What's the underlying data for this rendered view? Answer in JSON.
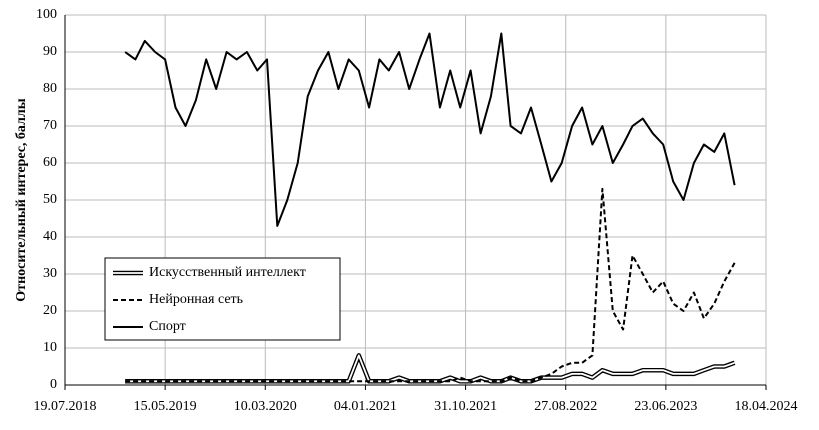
{
  "chart_data": {
    "type": "line",
    "ylabel": "Относительный интерес, баллы",
    "xlim": [
      "2018-07-19",
      "2024-04-18"
    ],
    "xticks": [
      {
        "value": "2018-07-19",
        "label": "19.07.2018"
      },
      {
        "value": "2019-05-15",
        "label": "15.05.2019"
      },
      {
        "value": "2020-03-10",
        "label": "10.03.2020"
      },
      {
        "value": "2021-01-04",
        "label": "04.01.2021"
      },
      {
        "value": "2021-10-31",
        "label": "31.10.2021"
      },
      {
        "value": "2022-08-27",
        "label": "27.08.2022"
      },
      {
        "value": "2023-06-23",
        "label": "23.06.2023"
      },
      {
        "value": "2024-04-18",
        "label": "18.04.2024"
      }
    ],
    "ylim": [
      0,
      100
    ],
    "yticks": [
      0,
      10,
      20,
      30,
      40,
      50,
      60,
      70,
      80,
      90,
      100
    ],
    "grid": true,
    "legend": "lower left",
    "x": [
      "2019-01-15",
      "2019-02-15",
      "2019-03-15",
      "2019-04-15",
      "2019-05-15",
      "2019-06-15",
      "2019-07-15",
      "2019-08-15",
      "2019-09-15",
      "2019-10-15",
      "2019-11-15",
      "2019-12-15",
      "2020-01-15",
      "2020-02-15",
      "2020-03-15",
      "2020-04-15",
      "2020-05-15",
      "2020-06-15",
      "2020-07-15",
      "2020-08-15",
      "2020-09-15",
      "2020-10-15",
      "2020-11-15",
      "2020-12-15",
      "2021-01-15",
      "2021-02-15",
      "2021-03-15",
      "2021-04-15",
      "2021-05-15",
      "2021-06-15",
      "2021-07-15",
      "2021-08-15",
      "2021-09-15",
      "2021-10-15",
      "2021-11-15",
      "2021-12-15",
      "2022-01-15",
      "2022-02-15",
      "2022-03-15",
      "2022-04-15",
      "2022-05-15",
      "2022-06-15",
      "2022-07-15",
      "2022-08-15",
      "2022-09-15",
      "2022-10-15",
      "2022-11-15",
      "2022-12-15",
      "2023-01-15",
      "2023-02-15",
      "2023-03-15",
      "2023-04-15",
      "2023-05-15",
      "2023-06-15",
      "2023-07-15",
      "2023-08-15",
      "2023-09-15",
      "2023-10-15",
      "2023-11-15",
      "2023-12-15",
      "2024-01-15"
    ],
    "series": [
      {
        "name": "Искусственный интеллект",
        "color": "#000000",
        "linestyle": "double",
        "values": [
          1,
          1,
          1,
          1,
          1,
          1,
          1,
          1,
          1,
          1,
          1,
          1,
          1,
          1,
          1,
          1,
          1,
          1,
          1,
          1,
          1,
          1,
          1,
          8,
          1,
          1,
          1,
          2,
          1,
          1,
          1,
          1,
          2,
          1,
          1,
          2,
          1,
          1,
          2,
          1,
          1,
          2,
          2,
          2,
          3,
          3,
          2,
          4,
          3,
          3,
          3,
          4,
          4,
          4,
          3,
          3,
          3,
          4,
          5,
          5,
          6
        ]
      },
      {
        "name": "Нейронная сеть",
        "color": "#000000",
        "linestyle": "dashed",
        "values": [
          1,
          1,
          1,
          1,
          1,
          1,
          1,
          1,
          1,
          1,
          1,
          1,
          1,
          1,
          1,
          1,
          1,
          1,
          1,
          1,
          1,
          1,
          1,
          1,
          1,
          1,
          1,
          1,
          1,
          1,
          1,
          1,
          1,
          2,
          1,
          1,
          1,
          1,
          2,
          1,
          1,
          2,
          3,
          5,
          6,
          6,
          8,
          53,
          20,
          15,
          35,
          30,
          25,
          28,
          22,
          20,
          25,
          18,
          22,
          28,
          33
        ]
      },
      {
        "name": "Спорт",
        "color": "#000000",
        "linestyle": "solid",
        "values": [
          90,
          88,
          93,
          90,
          88,
          75,
          70,
          77,
          88,
          80,
          90,
          88,
          90,
          85,
          88,
          43,
          50,
          60,
          78,
          85,
          90,
          80,
          88,
          85,
          75,
          88,
          85,
          90,
          80,
          88,
          95,
          75,
          85,
          75,
          85,
          68,
          78,
          95,
          70,
          68,
          75,
          65,
          55,
          60,
          70,
          75,
          65,
          70,
          60,
          65,
          70,
          72,
          68,
          65,
          55,
          50,
          60,
          65,
          63,
          68,
          54
        ]
      }
    ]
  }
}
